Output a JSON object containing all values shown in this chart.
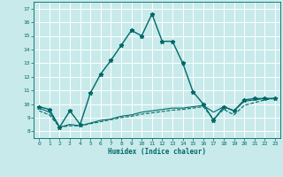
{
  "xlabel": "Humidex (Indice chaleur)",
  "background_color": "#c8eaea",
  "grid_color": "#b8d8d8",
  "line_color": "#006868",
  "xlim": [
    -0.5,
    23.5
  ],
  "ylim": [
    7.5,
    17.5
  ],
  "xticks": [
    0,
    1,
    2,
    3,
    4,
    5,
    6,
    7,
    8,
    9,
    10,
    11,
    12,
    13,
    14,
    15,
    16,
    17,
    18,
    19,
    20,
    21,
    22,
    23
  ],
  "yticks": [
    8,
    9,
    10,
    11,
    12,
    13,
    14,
    15,
    16,
    17
  ],
  "series": [
    {
      "x": [
        0,
        1,
        2,
        3,
        4,
        5,
        6,
        7,
        8,
        9,
        10,
        11,
        12,
        13,
        14,
        15,
        16,
        17,
        18,
        19,
        20,
        21,
        22,
        23
      ],
      "y": [
        9.8,
        9.6,
        8.3,
        9.5,
        8.5,
        10.8,
        12.2,
        13.2,
        14.3,
        15.4,
        15.0,
        16.6,
        14.6,
        14.6,
        13.0,
        10.9,
        10.0,
        8.8,
        9.8,
        9.5,
        10.3,
        10.4,
        10.4,
        10.4
      ],
      "linestyle": "-",
      "marker": "*",
      "markersize": 3.5,
      "linewidth": 1.0
    },
    {
      "x": [
        0,
        1,
        2,
        3,
        4,
        5,
        6,
        7,
        8,
        9,
        10,
        11,
        12,
        13,
        14,
        15,
        16,
        17,
        18,
        19,
        20,
        21,
        22,
        23
      ],
      "y": [
        9.7,
        9.4,
        8.3,
        8.5,
        8.4,
        8.6,
        8.8,
        8.9,
        9.1,
        9.2,
        9.4,
        9.5,
        9.6,
        9.7,
        9.7,
        9.8,
        9.9,
        9.4,
        9.8,
        9.5,
        10.2,
        10.3,
        10.4,
        10.4
      ],
      "linestyle": "-",
      "marker": "None",
      "markersize": 0,
      "linewidth": 0.8
    },
    {
      "x": [
        0,
        1,
        2,
        3,
        4,
        5,
        6,
        7,
        8,
        9,
        10,
        11,
        12,
        13,
        14,
        15,
        16,
        17,
        18,
        19,
        20,
        21,
        22,
        23
      ],
      "y": [
        9.5,
        9.2,
        8.3,
        8.4,
        8.4,
        8.55,
        8.7,
        8.85,
        9.0,
        9.1,
        9.25,
        9.35,
        9.45,
        9.55,
        9.6,
        9.7,
        9.8,
        8.9,
        9.6,
        9.2,
        9.9,
        10.1,
        10.3,
        10.4
      ],
      "linestyle": "--",
      "marker": "None",
      "markersize": 0,
      "linewidth": 0.8
    }
  ]
}
